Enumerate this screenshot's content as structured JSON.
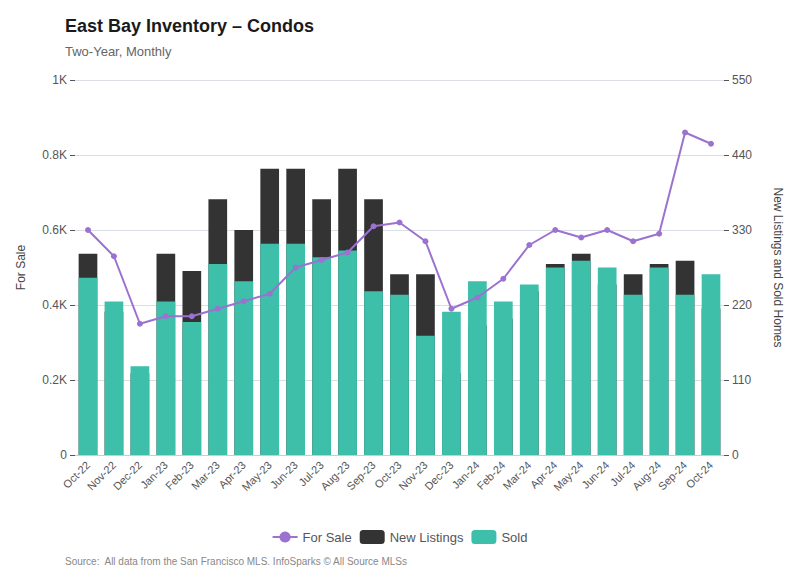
{
  "chart_data": {
    "type": "bar",
    "title": "East Bay Inventory – Condos",
    "subtitle": "Two-Year, Monthly",
    "source": "Source:  All data from the San Francisco MLS. InfoSparks © All Source MLSs",
    "categories": [
      "Oct-22",
      "Nov-22",
      "Dec-22",
      "Jan-23",
      "Feb-23",
      "Mar-23",
      "Apr-23",
      "May-23",
      "Jun-23",
      "Jul-23",
      "Aug-23",
      "Sep-23",
      "Oct-23",
      "Nov-23",
      "Dec-23",
      "Jan-24",
      "Feb-24",
      "Mar-24",
      "Apr-24",
      "May-24",
      "Jun-24",
      "Jul-24",
      "Aug-24",
      "Sep-24",
      "Oct-24"
    ],
    "series": [
      {
        "name": "For Sale",
        "type": "line",
        "marker": "circle",
        "color": "#9b72cf",
        "values": [
          600,
          530,
          350,
          370,
          370,
          390,
          410,
          430,
          500,
          520,
          540,
          610,
          620,
          570,
          390,
          420,
          470,
          560,
          600,
          580,
          600,
          570,
          590,
          860,
          830
        ]
      },
      {
        "name": "New Listings",
        "type": "bar",
        "axis": "y2",
        "color": "#333333",
        "values": [
          295,
          210,
          120,
          295,
          270,
          375,
          330,
          420,
          420,
          375,
          420,
          375,
          265,
          265,
          120,
          190,
          200,
          240,
          280,
          295,
          250,
          265,
          280,
          285,
          215
        ]
      },
      {
        "name": "Sold",
        "type": "bar",
        "axis": "y2",
        "color": "#3dbfaa",
        "values": [
          260,
          225,
          130,
          225,
          195,
          280,
          255,
          310,
          310,
          290,
          300,
          240,
          235,
          175,
          210,
          255,
          225,
          250,
          275,
          285,
          275,
          235,
          275,
          235,
          265
        ]
      }
    ],
    "ylabel": "For Sale",
    "y2label": "New Listings and Sold Homes",
    "ylim": [
      0,
      1000
    ],
    "yticks": [
      0,
      {
        "value": 200,
        "label": "0.2K"
      },
      {
        "value": 400,
        "label": "0.4K"
      },
      {
        "value": 600,
        "label": "0.6K"
      },
      {
        "value": 800,
        "label": "0.8K"
      },
      {
        "value": 1000,
        "label": "1K"
      }
    ],
    "y2lim": [
      0,
      550
    ],
    "y2ticks": [
      0,
      110,
      220,
      330,
      440,
      550
    ],
    "grid": true,
    "legend": "bottom"
  }
}
